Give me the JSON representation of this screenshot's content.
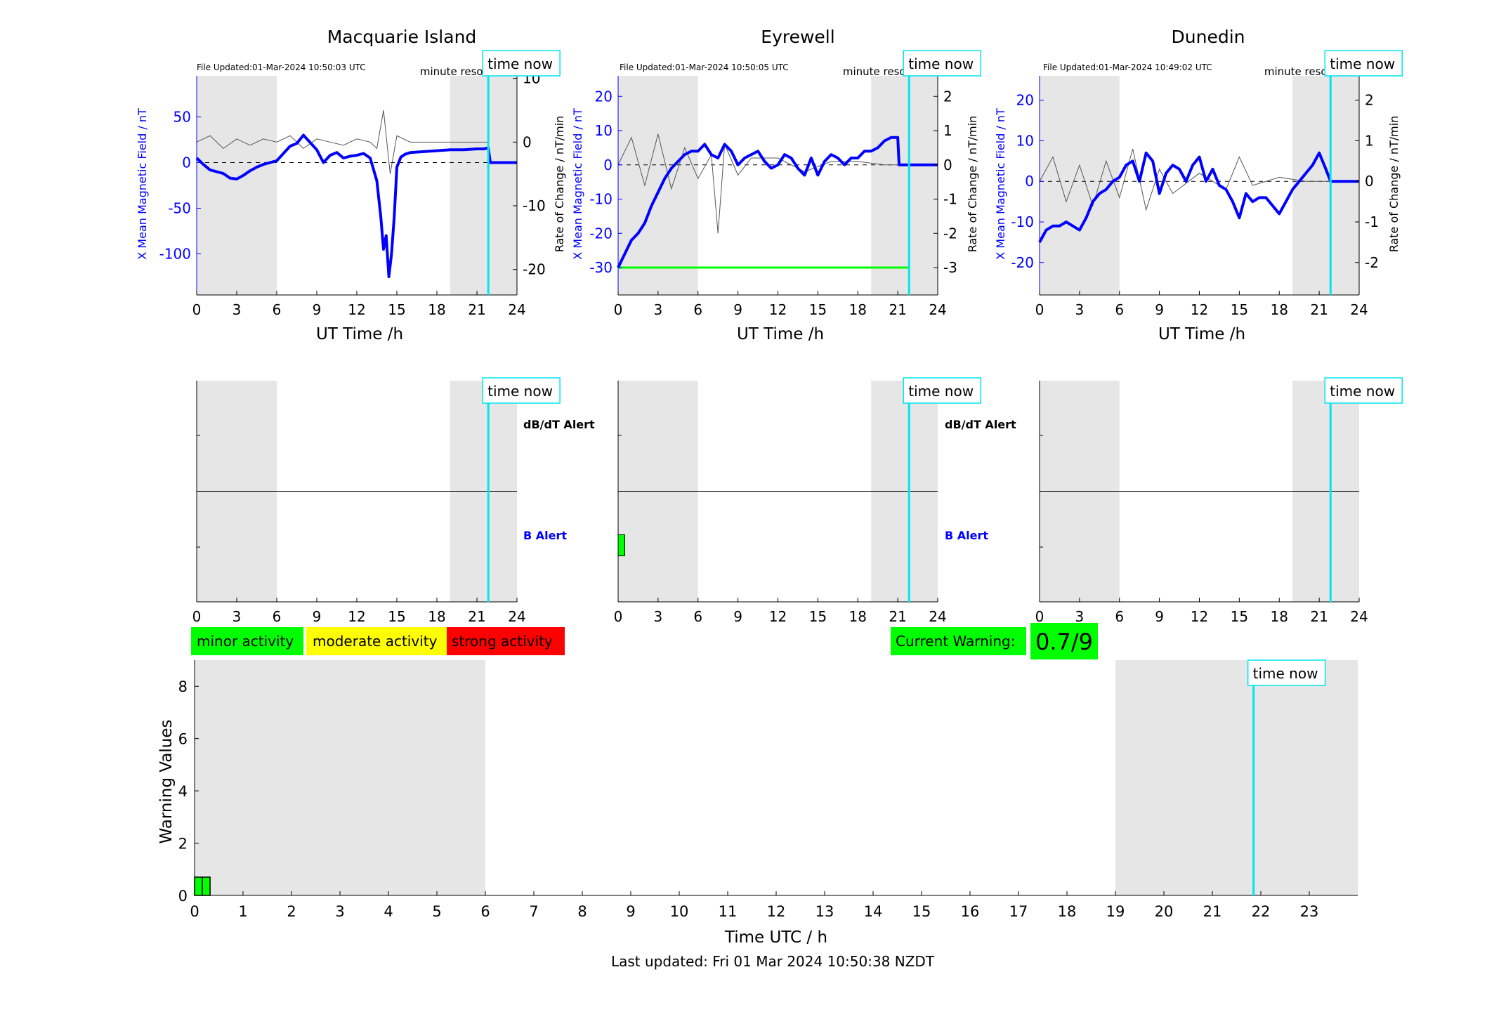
{
  "colors": {
    "b_line": "#0000ff",
    "dbdt_line": "#555555",
    "night_shade": "#e6e6e6",
    "time_now": "#00e5ee",
    "minor": "#00ff00",
    "moderate": "#ffff00",
    "strong": "#ff0000",
    "threshold": "#00ff00"
  },
  "common": {
    "xlabel": "UT Time /h",
    "x_ticks": [
      "0",
      "3",
      "6",
      "9",
      "12",
      "15",
      "18",
      "21",
      "24"
    ],
    "time_now_label": "time now",
    "resolution_label": "minute resolution",
    "time_now_hour": 21.85,
    "night_shade_hours": [
      [
        0,
        6
      ],
      [
        19,
        24
      ]
    ],
    "dbdt_alert_label": "dB/dT Alert",
    "b_alert_label": "B Alert"
  },
  "stations": [
    {
      "name": "Macquarie Island",
      "file_updated": "File Updated:01-Mar-2024 10:50:03 UTC",
      "ylabel_left": "X Mean Magnetic Field / nT",
      "ylabel_right": "Rate of Change / nT/min",
      "y_ticks_left": [
        "50",
        "0",
        "-50",
        "-100"
      ],
      "y_ticks_right": [
        "10",
        "0",
        "-10",
        "-20"
      ],
      "show_alert_labels": true,
      "alert_block": null
    },
    {
      "name": "Eyrewell",
      "file_updated": "File Updated:01-Mar-2024 10:50:05 UTC",
      "ylabel_left": "X Mean Magnetic Field / nT",
      "ylabel_right": "Rate of Change / nT/min",
      "y_ticks_left": [
        "20",
        "10",
        "0",
        "-10",
        "-20",
        "-30"
      ],
      "y_ticks_right": [
        "2",
        "1",
        "0",
        "-1",
        "-2",
        "-3"
      ],
      "show_alert_labels": true,
      "alert_block": [
        0,
        0.5
      ]
    },
    {
      "name": "Dunedin",
      "file_updated": "File Updated:01-Mar-2024 10:49:02 UTC",
      "ylabel_left": "X Mean Magnetic Field / nT",
      "ylabel_right": "Rate of Change / nT/min",
      "y_ticks_left": [
        "20",
        "10",
        "0",
        "-10",
        "-20"
      ],
      "y_ticks_right": [
        "2",
        "1",
        "0",
        "-1",
        "-2"
      ],
      "show_alert_labels": false,
      "alert_block": null
    }
  ],
  "legend": {
    "minor": "minor activity",
    "moderate": "moderate activity",
    "strong": "strong activity"
  },
  "current_warning": {
    "label": "Current Warning:",
    "value": "0.7/9"
  },
  "footer": {
    "last_updated": "Last updated: Fri 01 Mar 2024 10:50:38 NZDT"
  },
  "chart_data": [
    {
      "type": "line",
      "title": "Macquarie Island",
      "xlabel": "UT Time /h",
      "ylabel": "X Mean Magnetic Field / nT",
      "ylabel_right": "Rate of Change / nT/min",
      "xlim": [
        0,
        24
      ],
      "ylim": [
        -145,
        95
      ],
      "ylim_right": [
        -24,
        10.4
      ],
      "series": [
        {
          "axis": "left",
          "x": [
            0,
            0.5,
            1,
            1.5,
            2,
            2.5,
            3,
            3.5,
            4,
            4.5,
            5,
            5.5,
            6,
            6.5,
            7,
            7.5,
            8,
            8.5,
            9,
            9.5,
            10,
            10.5,
            11,
            11.5,
            12,
            12.5,
            13,
            13.5,
            13.8,
            14,
            14.2,
            14.4,
            14.6,
            14.8,
            15,
            15.3,
            15.6,
            16,
            17,
            18,
            19,
            20,
            21,
            21.5,
            21.85,
            22,
            23,
            24
          ],
          "y": [
            5,
            -2,
            -8,
            -10,
            -12,
            -17,
            -18,
            -14,
            -9,
            -5,
            -2,
            0,
            2,
            10,
            18,
            21,
            30,
            22,
            14,
            0,
            8,
            11,
            5,
            7,
            8,
            10,
            5,
            -20,
            -60,
            -95,
            -80,
            -125,
            -100,
            -60,
            -5,
            6,
            9,
            11,
            12,
            13,
            14,
            14,
            15,
            15,
            16,
            0,
            0,
            0
          ]
        },
        {
          "axis": "right",
          "description_free": true,
          "x": [
            0,
            1,
            2,
            3,
            4,
            5,
            6,
            7,
            8,
            9,
            10,
            11,
            12,
            13,
            13.5,
            14,
            14.5,
            15,
            16,
            18,
            20,
            21.85
          ],
          "y": [
            0,
            1,
            -1,
            0.5,
            -0.5,
            0.5,
            0,
            1,
            -1,
            0.5,
            0,
            -0.5,
            0.5,
            0,
            -1,
            5,
            -5,
            1,
            0,
            0,
            0,
            0
          ]
        }
      ]
    },
    {
      "type": "line",
      "title": "Eyrewell",
      "xlabel": "UT Time /h",
      "ylabel": "X Mean Magnetic Field / nT",
      "ylabel_right": "Rate of Change / nT/min",
      "xlim": [
        0,
        24
      ],
      "ylim": [
        -38,
        26
      ],
      "ylim_right": [
        -3.8,
        2.6
      ],
      "threshold_right": -3,
      "series": [
        {
          "axis": "left",
          "x": [
            0,
            0.5,
            1,
            1.5,
            2,
            2.5,
            3,
            3.5,
            4,
            4.5,
            5,
            5.5,
            6,
            6.5,
            7,
            7.5,
            8,
            8.5,
            9,
            9.5,
            10,
            10.5,
            11,
            11.5,
            12,
            12.5,
            13,
            13.5,
            14,
            14.5,
            15,
            15.5,
            16,
            16.5,
            17,
            17.5,
            18,
            18.5,
            19,
            19.5,
            20,
            20.5,
            21,
            21.1,
            21.85,
            22,
            24
          ],
          "y": [
            -30,
            -26,
            -22,
            -20,
            -17,
            -12,
            -8,
            -4,
            -1,
            1,
            3,
            4,
            4,
            6,
            3,
            2,
            6,
            4,
            0,
            2,
            3,
            4,
            1,
            -1,
            0,
            3,
            2,
            -1,
            -3,
            2,
            -3,
            1,
            3,
            2,
            0,
            2,
            2,
            4,
            4,
            5,
            7,
            8,
            8,
            0,
            0,
            0,
            0
          ]
        },
        {
          "axis": "right",
          "x": [
            0,
            1,
            2,
            3,
            4,
            5,
            6,
            7,
            7.5,
            8,
            9,
            10,
            12,
            14,
            16,
            18,
            20,
            21
          ],
          "y": [
            0,
            0.8,
            -0.6,
            0.9,
            -0.7,
            0.5,
            -0.4,
            0.3,
            -2,
            0.6,
            -0.3,
            0.2,
            0.2,
            -0.2,
            0.1,
            0.1,
            0,
            0
          ]
        }
      ]
    },
    {
      "type": "line",
      "title": "Dunedin",
      "xlabel": "UT Time /h",
      "ylabel": "X Mean Magnetic Field / nT",
      "ylabel_right": "Rate of Change / nT/min",
      "xlim": [
        0,
        24
      ],
      "ylim": [
        -28,
        26
      ],
      "ylim_right": [
        -2.8,
        2.6
      ],
      "series": [
        {
          "axis": "left",
          "x": [
            0,
            0.5,
            1,
            1.5,
            2,
            2.5,
            3,
            3.5,
            4,
            4.5,
            5,
            5.5,
            6,
            6.5,
            7,
            7.5,
            8,
            8.5,
            9,
            9.5,
            10,
            10.5,
            11,
            11.5,
            12,
            12.5,
            13,
            13.5,
            14,
            14.5,
            15,
            15.5,
            16,
            16.5,
            17,
            17.5,
            18,
            18.5,
            19,
            19.5,
            20,
            20.5,
            21,
            21.5,
            21.85,
            22,
            24
          ],
          "y": [
            -15,
            -12,
            -11,
            -11,
            -10,
            -11,
            -12,
            -9,
            -5,
            -3,
            -2,
            0,
            1,
            4,
            5,
            0,
            7,
            5,
            -3,
            2,
            4,
            3,
            0,
            4,
            6,
            0,
            3,
            -1,
            -2,
            -5,
            -9,
            -3,
            -5,
            -4,
            -4,
            -6,
            -8,
            -5,
            -2,
            0,
            2,
            4,
            7,
            3,
            0,
            0,
            0
          ]
        },
        {
          "axis": "right",
          "x": [
            0,
            1,
            2,
            3,
            4,
            5,
            6,
            7,
            8,
            9,
            10,
            12,
            14,
            15,
            16,
            18,
            20,
            21.85
          ],
          "y": [
            0,
            0.6,
            -0.5,
            0.4,
            -0.6,
            0.5,
            -0.4,
            0.8,
            -0.7,
            0.3,
            -0.3,
            0.2,
            -0.2,
            0.6,
            -0.1,
            0.1,
            0,
            0
          ]
        }
      ]
    },
    {
      "type": "bar",
      "xlabel": "Time UTC / h",
      "ylabel": "Warning Values",
      "xlim": [
        0,
        24
      ],
      "ylim": [
        0,
        9
      ],
      "x_ticks": [
        "0",
        "1",
        "2",
        "3",
        "4",
        "5",
        "6",
        "7",
        "8",
        "9",
        "10",
        "11",
        "12",
        "13",
        "14",
        "15",
        "16",
        "17",
        "18",
        "19",
        "20",
        "21",
        "22",
        "23"
      ],
      "y_ticks": [
        "0",
        "2",
        "4",
        "6",
        "8"
      ],
      "night_shade_hours": [
        [
          0,
          6
        ],
        [
          19,
          24
        ]
      ],
      "time_now_hour": 21.85,
      "bars": [
        {
          "start": 0,
          "end": 0.16,
          "value": 0.7
        },
        {
          "start": 0.16,
          "end": 0.32,
          "value": 0.7
        }
      ]
    }
  ]
}
